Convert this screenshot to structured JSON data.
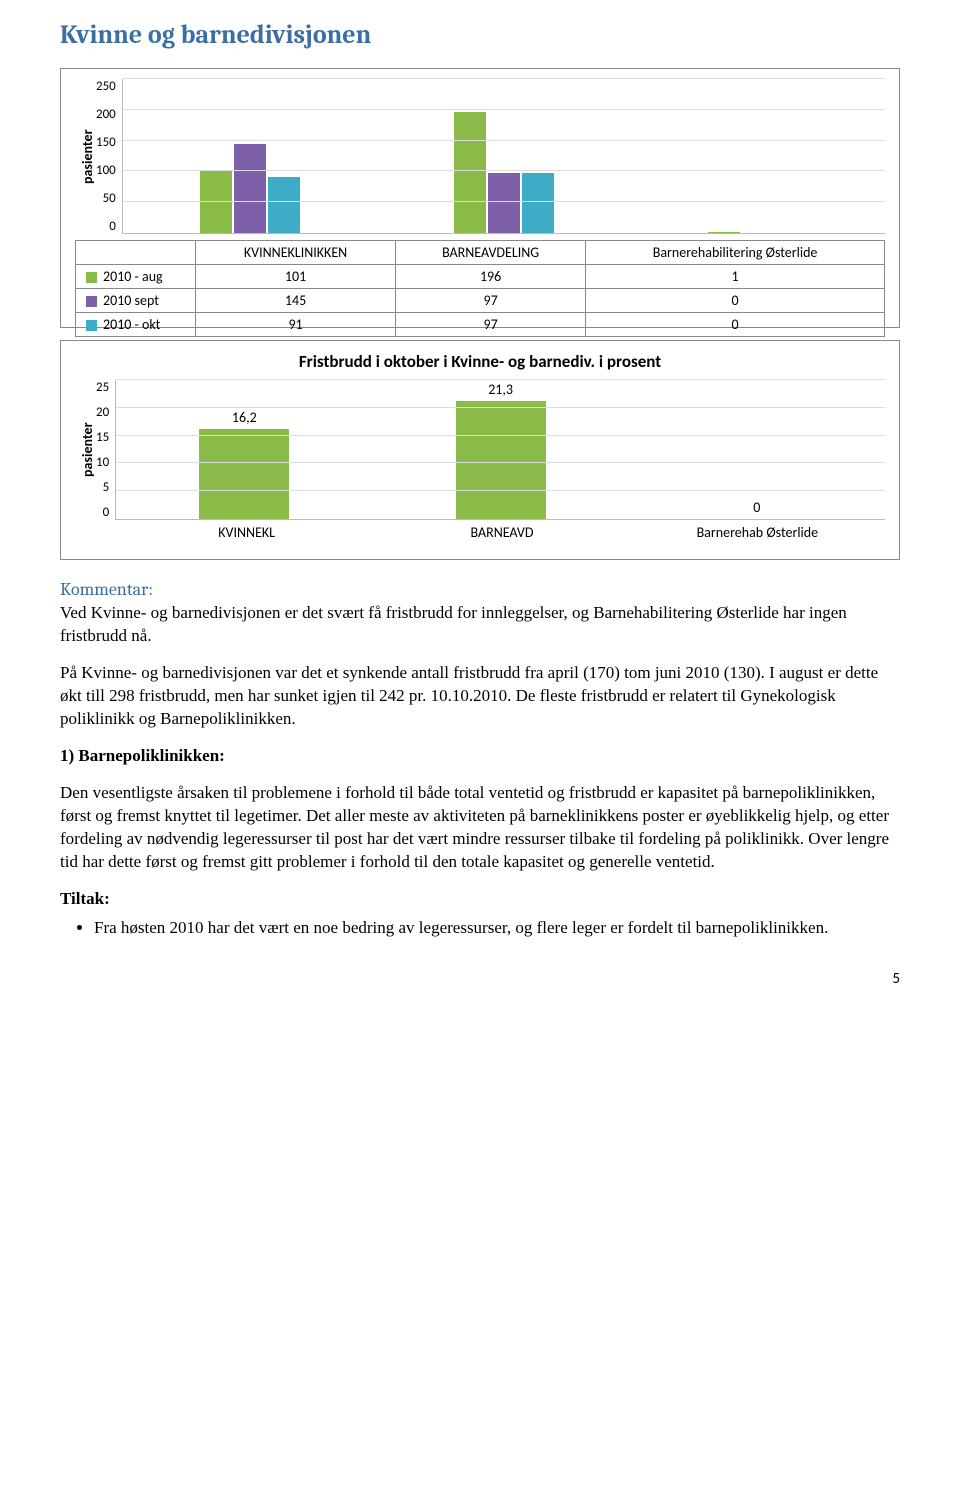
{
  "title": "Kvinne og barnedivisjonen",
  "chart1": {
    "type": "bar",
    "ylabel": "pasienter",
    "ylim": [
      0,
      250
    ],
    "ytick_step": 50,
    "categories": [
      "KVINNEKLINIKKEN",
      "BARNEAVDELING",
      "Barnerehabilitering Østerlide"
    ],
    "series": [
      {
        "name": "2010 - aug",
        "color": "#8aba47",
        "values": [
          101,
          196,
          1
        ]
      },
      {
        "name": "2010 sept",
        "color": "#7e5fa9",
        "values": [
          145,
          97,
          0
        ]
      },
      {
        "name": "2010 - okt",
        "color": "#3eacc6",
        "values": [
          91,
          97,
          0
        ]
      }
    ],
    "grid_color": "#dddddd",
    "label_fontsize": 14
  },
  "chart2": {
    "type": "bar",
    "title": "Fristbrudd i oktober i Kvinne- og barnediv. i prosent",
    "ylabel": "pasienter",
    "ylim": [
      0,
      25
    ],
    "ytick_step": 5,
    "categories": [
      "KVINNEKL",
      "BARNEAVD",
      "Barnerehab Østerlide"
    ],
    "values": [
      16.2,
      21.3,
      0
    ],
    "value_labels": [
      "16,2",
      "21,3",
      "0"
    ],
    "bar_color": "#8aba47",
    "grid_color": "#dddddd",
    "label_fontsize": 14
  },
  "kommentar": {
    "heading": "Kommentar:",
    "p1": "Ved Kvinne- og barnedivisjonen er det svært få fristbrudd for innleggelser, og Barnehabilitering Østerlide har ingen fristbrudd nå.",
    "p2": "På Kvinne- og barnedivisjonen var det et synkende antall fristbrudd fra april (170) tom juni 2010 (130). I august er dette økt till 298 fristbrudd, men har sunket igjen til 242 pr. 10.10.2010. De fleste fristbrudd er relatert til Gynekologisk poliklinikk og Barnepoliklinikken."
  },
  "section1": {
    "heading": "1) Barnepoliklinikken:",
    "p1": "Den vesentligste årsaken til problemene i forhold til både total ventetid og fristbrudd er kapasitet på barnepoliklinikken, først og fremst knyttet til legetimer. Det aller meste av aktiviteten på barneklinikkens poster er øyeblikkelig hjelp, og etter fordeling av nødvendig legeressurser til post har det vært mindre ressurser tilbake til fordeling på poliklinikk. Over lengre tid har dette først og fremst gitt problemer i forhold til den totale kapasitet og generelle ventetid."
  },
  "tiltak": {
    "heading": "Tiltak:",
    "bullet1": "Fra høsten 2010 har det vært en noe bedring av legeressurser, og flere leger er fordelt til barnepoliklinikken."
  },
  "page_number": "5"
}
